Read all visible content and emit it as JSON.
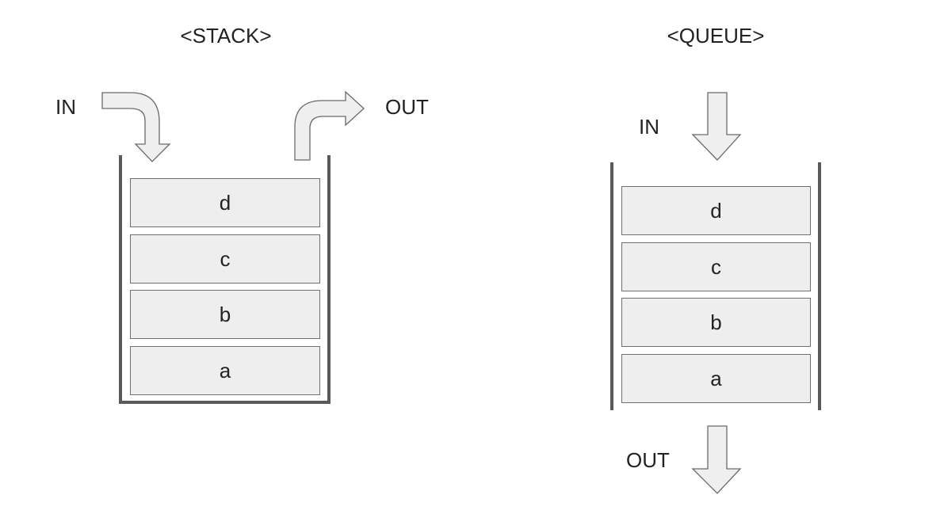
{
  "stack": {
    "title": "<STACK>",
    "in_label": "IN",
    "out_label": "OUT",
    "items": [
      "d",
      "c",
      "b",
      "a"
    ]
  },
  "queue": {
    "title": "<QUEUE>",
    "in_label": "IN",
    "out_label": "OUT",
    "items": [
      "d",
      "c",
      "b",
      "a"
    ]
  },
  "colors": {
    "item_fill": "#eeeeee",
    "item_border": "#6f6f6f",
    "wall": "#5a5a5a",
    "arrow_fill": "#efefef",
    "arrow_stroke": "#6a6a6a"
  },
  "icons": {
    "stack_in": "curved-arrow-down-icon",
    "stack_out": "curved-arrow-right-icon",
    "queue_in": "arrow-down-icon",
    "queue_out": "arrow-down-icon"
  }
}
